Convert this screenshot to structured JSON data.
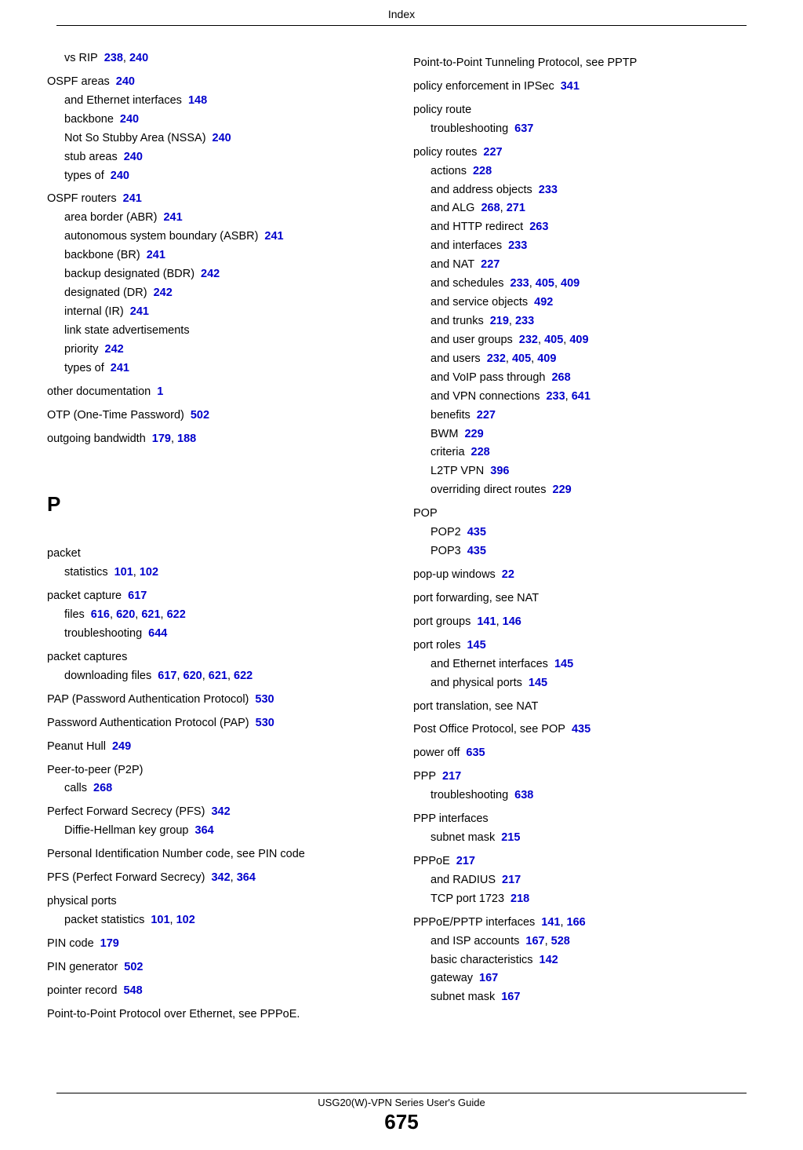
{
  "header": {
    "title": "Index"
  },
  "footer": {
    "guide_title": "USG20(W)-VPN Series User's Guide",
    "page_number": "675"
  },
  "sections": {
    "P": "P"
  },
  "left_col": [
    {
      "level": 1,
      "text": "vs RIP",
      "pages": [
        "238",
        "240"
      ]
    },
    {
      "level": 0,
      "text": "OSPF areas",
      "pages": [
        "240"
      ]
    },
    {
      "level": 1,
      "text": "and Ethernet interfaces",
      "pages": [
        "148"
      ]
    },
    {
      "level": 1,
      "text": "backbone",
      "pages": [
        "240"
      ]
    },
    {
      "level": 1,
      "text": "Not So Stubby Area (NSSA)",
      "pages": [
        "240"
      ]
    },
    {
      "level": 1,
      "text": "stub areas",
      "pages": [
        "240"
      ]
    },
    {
      "level": 1,
      "text": "types of",
      "pages": [
        "240"
      ]
    },
    {
      "level": 0,
      "text": "OSPF routers",
      "pages": [
        "241"
      ]
    },
    {
      "level": 1,
      "text": "area border (ABR)",
      "pages": [
        "241"
      ]
    },
    {
      "level": 1,
      "text": "autonomous system boundary (ASBR)",
      "pages": [
        "241"
      ]
    },
    {
      "level": 1,
      "text": "backbone (BR)",
      "pages": [
        "241"
      ]
    },
    {
      "level": 1,
      "text": "backup designated (BDR)",
      "pages": [
        "242"
      ]
    },
    {
      "level": 1,
      "text": "designated (DR)",
      "pages": [
        "242"
      ]
    },
    {
      "level": 1,
      "text": "internal (IR)",
      "pages": [
        "241"
      ]
    },
    {
      "level": 1,
      "text": "link state advertisements",
      "pages": []
    },
    {
      "level": 1,
      "text": "priority",
      "pages": [
        "242"
      ]
    },
    {
      "level": 1,
      "text": "types of",
      "pages": [
        "241"
      ]
    },
    {
      "level": 0,
      "text": "other documentation",
      "pages": [
        "1"
      ]
    },
    {
      "level": 0,
      "text": "OTP (One-Time Password)",
      "pages": [
        "502"
      ]
    },
    {
      "level": 0,
      "text": "outgoing bandwidth",
      "pages": [
        "179",
        "188"
      ]
    },
    {
      "level": "section",
      "text_key": "P"
    },
    {
      "level": 0,
      "text": "packet",
      "pages": []
    },
    {
      "level": 1,
      "text": "statistics",
      "pages": [
        "101",
        "102"
      ]
    },
    {
      "level": 0,
      "text": "packet capture",
      "pages": [
        "617"
      ]
    },
    {
      "level": 1,
      "text": "files",
      "pages": [
        "616",
        "620",
        "621",
        "622"
      ]
    },
    {
      "level": 1,
      "text": "troubleshooting",
      "pages": [
        "644"
      ]
    },
    {
      "level": 0,
      "text": "packet captures",
      "pages": []
    },
    {
      "level": 1,
      "text": "downloading files",
      "pages": [
        "617",
        "620",
        "621",
        "622"
      ]
    },
    {
      "level": 0,
      "text": "PAP (Password Authentication Protocol)",
      "pages": [
        "530"
      ]
    },
    {
      "level": 0,
      "text": "Password Authentication Protocol (PAP)",
      "pages": [
        "530"
      ]
    },
    {
      "level": 0,
      "text": "Peanut Hull",
      "pages": [
        "249"
      ]
    },
    {
      "level": 0,
      "text": "Peer-to-peer (P2P)",
      "pages": []
    },
    {
      "level": 1,
      "text": "calls",
      "pages": [
        "268"
      ]
    },
    {
      "level": 0,
      "text": "Perfect Forward Secrecy (PFS)",
      "pages": [
        "342"
      ]
    },
    {
      "level": 1,
      "text": "Diffie-Hellman key group",
      "pages": [
        "364"
      ]
    },
    {
      "level": 0,
      "text": "Personal Identification Number code, see PIN code",
      "pages": []
    },
    {
      "level": 0,
      "text": "PFS (Perfect Forward Secrecy)",
      "pages": [
        "342",
        "364"
      ]
    },
    {
      "level": 0,
      "text": "physical ports",
      "pages": []
    },
    {
      "level": 1,
      "text": "packet statistics",
      "pages": [
        "101",
        "102"
      ]
    },
    {
      "level": 0,
      "text": "PIN code",
      "pages": [
        "179"
      ]
    },
    {
      "level": 0,
      "text": "PIN generator",
      "pages": [
        "502"
      ]
    },
    {
      "level": 0,
      "text": "pointer record",
      "pages": [
        "548"
      ]
    },
    {
      "level": 0,
      "text": "Point-to-Point Protocol over Ethernet, see PPPoE.",
      "pages": []
    }
  ],
  "right_col": [
    {
      "level": 0,
      "text": "Point-to-Point Tunneling Protocol, see PPTP",
      "pages": []
    },
    {
      "level": 0,
      "text": "policy enforcement in IPSec",
      "pages": [
        "341"
      ]
    },
    {
      "level": 0,
      "text": "policy route",
      "pages": []
    },
    {
      "level": 1,
      "text": "troubleshooting",
      "pages": [
        "637"
      ]
    },
    {
      "level": 0,
      "text": "policy routes",
      "pages": [
        "227"
      ]
    },
    {
      "level": 1,
      "text": "actions",
      "pages": [
        "228"
      ]
    },
    {
      "level": 1,
      "text": "and address objects",
      "pages": [
        "233"
      ]
    },
    {
      "level": 1,
      "text": "and ALG",
      "pages": [
        "268",
        "271"
      ]
    },
    {
      "level": 1,
      "text": "and HTTP redirect",
      "pages": [
        "263"
      ]
    },
    {
      "level": 1,
      "text": "and interfaces",
      "pages": [
        "233"
      ]
    },
    {
      "level": 1,
      "text": "and NAT",
      "pages": [
        "227"
      ]
    },
    {
      "level": 1,
      "text": "and schedules",
      "pages": [
        "233",
        "405",
        "409"
      ]
    },
    {
      "level": 1,
      "text": "and service objects",
      "pages": [
        "492"
      ]
    },
    {
      "level": 1,
      "text": "and trunks",
      "pages": [
        "219",
        "233"
      ]
    },
    {
      "level": 1,
      "text": "and user groups",
      "pages": [
        "232",
        "405",
        "409"
      ]
    },
    {
      "level": 1,
      "text": "and users",
      "pages": [
        "232",
        "405",
        "409"
      ]
    },
    {
      "level": 1,
      "text": "and VoIP pass through",
      "pages": [
        "268"
      ]
    },
    {
      "level": 1,
      "text": "and VPN connections",
      "pages": [
        "233",
        "641"
      ]
    },
    {
      "level": 1,
      "text": "benefits",
      "pages": [
        "227"
      ]
    },
    {
      "level": 1,
      "text": "BWM",
      "pages": [
        "229"
      ]
    },
    {
      "level": 1,
      "text": "criteria",
      "pages": [
        "228"
      ]
    },
    {
      "level": 1,
      "text": "L2TP VPN",
      "pages": [
        "396"
      ]
    },
    {
      "level": 1,
      "text": "overriding direct routes",
      "pages": [
        "229"
      ]
    },
    {
      "level": 0,
      "text": "POP",
      "pages": []
    },
    {
      "level": 1,
      "text": "POP2",
      "pages": [
        "435"
      ]
    },
    {
      "level": 1,
      "text": "POP3",
      "pages": [
        "435"
      ]
    },
    {
      "level": 0,
      "text": "pop-up windows",
      "pages": [
        "22"
      ]
    },
    {
      "level": 0,
      "text": "port forwarding, see NAT",
      "pages": []
    },
    {
      "level": 0,
      "text": "port groups",
      "pages": [
        "141",
        "146"
      ]
    },
    {
      "level": 0,
      "text": "port roles",
      "pages": [
        "145"
      ]
    },
    {
      "level": 1,
      "text": "and Ethernet interfaces",
      "pages": [
        "145"
      ]
    },
    {
      "level": 1,
      "text": "and physical ports",
      "pages": [
        "145"
      ]
    },
    {
      "level": 0,
      "text": "port translation, see NAT",
      "pages": []
    },
    {
      "level": 0,
      "text": "Post Office Protocol, see POP",
      "pages": [
        "435"
      ]
    },
    {
      "level": 0,
      "text": "power off",
      "pages": [
        "635"
      ]
    },
    {
      "level": 0,
      "text": "PPP",
      "pages": [
        "217"
      ]
    },
    {
      "level": 1,
      "text": "troubleshooting",
      "pages": [
        "638"
      ]
    },
    {
      "level": 0,
      "text": "PPP interfaces",
      "pages": []
    },
    {
      "level": 1,
      "text": "subnet mask",
      "pages": [
        "215"
      ]
    },
    {
      "level": 0,
      "text": "PPPoE",
      "pages": [
        "217"
      ]
    },
    {
      "level": 1,
      "text": "and RADIUS",
      "pages": [
        "217"
      ]
    },
    {
      "level": 1,
      "text": "TCP port 1723",
      "pages": [
        "218"
      ]
    },
    {
      "level": 0,
      "text": "PPPoE/PPTP interfaces",
      "pages": [
        "141",
        "166"
      ]
    },
    {
      "level": 1,
      "text": "and ISP accounts",
      "pages": [
        "167",
        "528"
      ]
    },
    {
      "level": 1,
      "text": "basic characteristics",
      "pages": [
        "142"
      ]
    },
    {
      "level": 1,
      "text": "gateway",
      "pages": [
        "167"
      ]
    },
    {
      "level": 1,
      "text": "subnet mask",
      "pages": [
        "167"
      ]
    }
  ]
}
